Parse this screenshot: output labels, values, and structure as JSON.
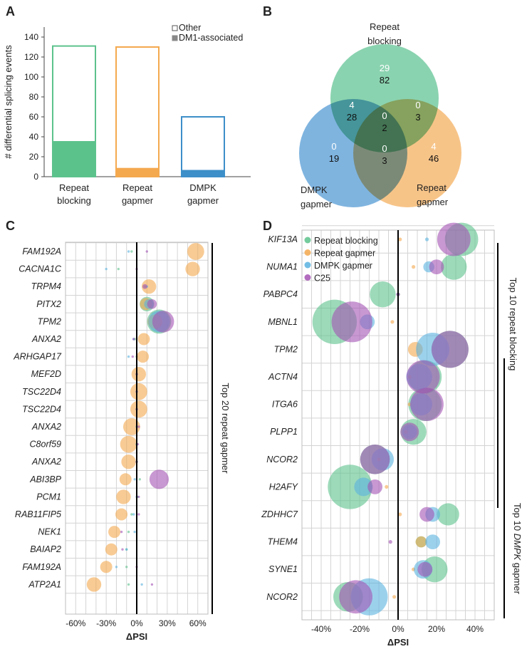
{
  "panels": {
    "a": "A",
    "b": "B",
    "c": "C",
    "d": "D"
  },
  "chart_data": [
    {
      "id": "A",
      "type": "bar",
      "ylabel": "# differential splicing events",
      "ylim": [
        0,
        150
      ],
      "yticks": [
        0,
        20,
        40,
        60,
        80,
        100,
        120,
        140
      ],
      "categories": [
        "Repeat blocking",
        "Repeat gapmer",
        "DMPK gapmer"
      ],
      "category_lines": [
        [
          "Repeat",
          "blocking"
        ],
        [
          "Repeat",
          "gapmer"
        ],
        [
          "DMPK",
          "gapmer"
        ]
      ],
      "colors": [
        "#5cc28c",
        "#f4a94f",
        "#3d8fc9"
      ],
      "series": [
        {
          "name": "DM1-associated",
          "values": [
            35,
            8,
            6
          ]
        },
        {
          "name": "Other",
          "values": [
            96,
            122,
            54
          ]
        }
      ],
      "legend": [
        "Other",
        "DM1-associated"
      ]
    },
    {
      "id": "B",
      "type": "venn",
      "sets": [
        {
          "name": "Repeat blocking",
          "lines": [
            "Repeat",
            "blocking"
          ],
          "color": "#69c79a"
        },
        {
          "name": "DMPK gapmer",
          "lines": [
            "DMPK",
            "gapmer"
          ],
          "color": "#5b9fd6"
        },
        {
          "name": "Repeat gapmer",
          "lines": [
            "Repeat",
            "gapmer"
          ],
          "color": "#f5b466"
        }
      ],
      "regions": [
        {
          "region": "Repeat blocking only",
          "top": "29",
          "bottom": "82"
        },
        {
          "region": "Repeat blocking & DMPK gapmer",
          "top": "4",
          "bottom": "28"
        },
        {
          "region": "Repeat blocking & Repeat gapmer",
          "top": "0",
          "bottom": "3"
        },
        {
          "region": "All three",
          "top": "0",
          "bottom": "2"
        },
        {
          "region": "DMPK gapmer only",
          "top": "0",
          "bottom": "19"
        },
        {
          "region": "DMPK gapmer & Repeat gapmer",
          "top": "0",
          "bottom": "3"
        },
        {
          "region": "Repeat gapmer only",
          "top": "4",
          "bottom": "46"
        }
      ]
    },
    {
      "id": "C",
      "type": "bubble",
      "xlabel": "ΔPSI",
      "xlim": [
        -70,
        70
      ],
      "xticks": [
        -60,
        -30,
        0,
        30,
        60
      ],
      "xtick_labels": [
        "-60%",
        "-30%",
        "0%",
        "30%",
        "60%"
      ],
      "side_label": "Top 20 repeat gapmer",
      "genes": [
        "FAM192A",
        "CACNA1C",
        "TRPM4",
        "PITX2",
        "TPM2",
        "ANXA2",
        "ARHGAP17",
        "MEF2D",
        "TSC22D4",
        "TSC22D4",
        "ANXA2",
        "C8orf59",
        "ANXA2",
        "ABI3BP",
        "PCM1",
        "RAB11FIP5",
        "NEK1",
        "BAIAP2",
        "FAM192A",
        "ATP2A1"
      ],
      "series": [
        {
          "name": "Repeat blocking",
          "color": "#5cc28c",
          "values": [
            -5,
            -18,
            8,
            10,
            22,
            -2,
            0,
            0,
            0,
            0,
            0,
            0,
            0,
            3,
            1,
            -5,
            -8,
            -10,
            -10,
            -8
          ],
          "sizes": [
            1,
            1,
            1,
            6,
            10,
            1,
            1,
            1,
            1,
            1,
            1,
            1,
            1,
            1,
            1,
            1,
            1,
            1,
            1,
            1
          ]
        },
        {
          "name": "Repeat gapmer",
          "color": "#f4a94f",
          "values": [
            58,
            55,
            12,
            9,
            18,
            7,
            6,
            2,
            2,
            2,
            -5,
            -8,
            -8,
            -11,
            -13,
            -15,
            -22,
            -25,
            -30,
            -42
          ],
          "sizes": [
            7,
            6,
            6,
            5,
            6,
            5,
            5,
            6,
            7,
            7,
            7,
            7,
            6,
            5,
            6,
            5,
            5,
            5,
            5,
            6
          ]
        },
        {
          "name": "DMPK gapmer",
          "color": "#5ab2e0",
          "values": [
            -8,
            -30,
            10,
            12,
            22,
            -3,
            -8,
            0,
            0,
            0,
            0,
            0,
            0,
            -2,
            0,
            -3,
            -2,
            -10,
            -20,
            5
          ],
          "sizes": [
            1,
            1,
            1,
            4,
            9,
            1,
            1,
            1,
            1,
            1,
            1,
            1,
            1,
            1,
            1,
            1,
            1,
            1,
            1,
            1
          ]
        },
        {
          "name": "C25",
          "color": "#a454b4",
          "values": [
            10,
            0,
            8,
            15,
            26,
            -3,
            -4,
            0,
            0,
            0,
            2,
            1,
            0,
            22,
            2,
            2,
            -15,
            -14,
            0,
            15
          ],
          "sizes": [
            1,
            1,
            2,
            4,
            9,
            1,
            1,
            1,
            1,
            1,
            1,
            1,
            1,
            8,
            1,
            1,
            1,
            1,
            1,
            1
          ]
        }
      ]
    },
    {
      "id": "D",
      "type": "bubble",
      "xlabel": "ΔPSI",
      "xlim": [
        -50,
        50
      ],
      "xticks": [
        -40,
        -20,
        0,
        20,
        40
      ],
      "xtick_labels": [
        "-40%",
        "-20%",
        "0%",
        "20%",
        "40%"
      ],
      "side_label_top": "Top 10 repeat blocking",
      "side_label_bottom_prefix": "Top 10 ",
      "side_label_bottom_italic": "DMPK",
      "side_label_bottom_suffix": " gapmer",
      "legend": [
        "Repeat blocking",
        "Repeat gapmer",
        "DMPK gapmer",
        "C25"
      ],
      "genes": [
        "KIF13A",
        "NUMA1",
        "PABPC4",
        "MBNL1",
        "TPM2",
        "ACTN4",
        "ITGA6",
        "PLPP1",
        "NCOR2",
        "H2AFY",
        "ZDHHC7",
        "THEM4",
        "SYNE1",
        "NCOR2"
      ],
      "series": [
        {
          "name": "Repeat blocking",
          "color": "#5cc28c",
          "values": [
            33,
            29,
            -8,
            -33,
            27,
            14,
            14,
            8,
            -12,
            -25,
            26,
            12,
            19,
            -26
          ],
          "sizes": [
            9,
            7,
            7,
            12,
            10,
            9,
            9,
            7,
            8,
            12,
            6,
            3,
            7,
            8
          ]
        },
        {
          "name": "Repeat gapmer",
          "color": "#f4a94f",
          "values": [
            1,
            8,
            0,
            -3,
            9,
            6,
            6,
            4,
            -10,
            -6,
            1,
            12,
            8,
            -2
          ],
          "sizes": [
            1,
            1,
            1,
            1,
            4,
            1,
            1,
            1,
            1,
            1,
            1,
            3,
            1,
            1
          ]
        },
        {
          "name": "DMPK gapmer",
          "color": "#5ab2e0",
          "values": [
            15,
            16,
            0,
            -16,
            18,
            11,
            12,
            6,
            -8,
            -18,
            18,
            18,
            13,
            -15
          ],
          "sizes": [
            1,
            3,
            1,
            4,
            9,
            7,
            6,
            4,
            6,
            5,
            4,
            4,
            5,
            10
          ]
        },
        {
          "name": "C25",
          "color": "#a454b4",
          "values": [
            29,
            20,
            0,
            -24,
            27,
            13,
            15,
            6,
            -12,
            -12,
            15,
            -4,
            14,
            -22
          ],
          "sizes": [
            9,
            4,
            1,
            11,
            10,
            9,
            9,
            5,
            8,
            4,
            4,
            1,
            4,
            9
          ]
        }
      ]
    }
  ]
}
